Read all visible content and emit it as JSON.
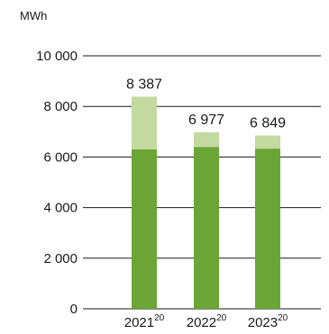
{
  "chart_data": {
    "type": "bar",
    "stacked": true,
    "unit_label": "MWh",
    "categories": [
      {
        "label": "2021",
        "footnote": "20"
      },
      {
        "label": "2022",
        "footnote": "20"
      },
      {
        "label": "2023",
        "footnote": "20"
      }
    ],
    "series": [
      {
        "values": [
          6300,
          6400,
          6330
        ]
      },
      {
        "values": [
          2087,
          577,
          519
        ]
      }
    ],
    "totals": [
      "8 387",
      "6 977",
      "6 849"
    ],
    "y_ticks": [
      {
        "value": 0,
        "label": "0"
      },
      {
        "value": 2000,
        "label": "2 000"
      },
      {
        "value": 4000,
        "label": "4 000"
      },
      {
        "value": 6000,
        "label": "6 000"
      },
      {
        "value": 8000,
        "label": "8 000"
      },
      {
        "value": 10000,
        "label": "10 000"
      }
    ],
    "ylim": [
      0,
      10000
    ],
    "grid": true,
    "colors": {
      "base": "#6aa535",
      "top": "#c2d9a0",
      "gridline": "#1a1a1a",
      "text": "#1a1a1a"
    }
  }
}
